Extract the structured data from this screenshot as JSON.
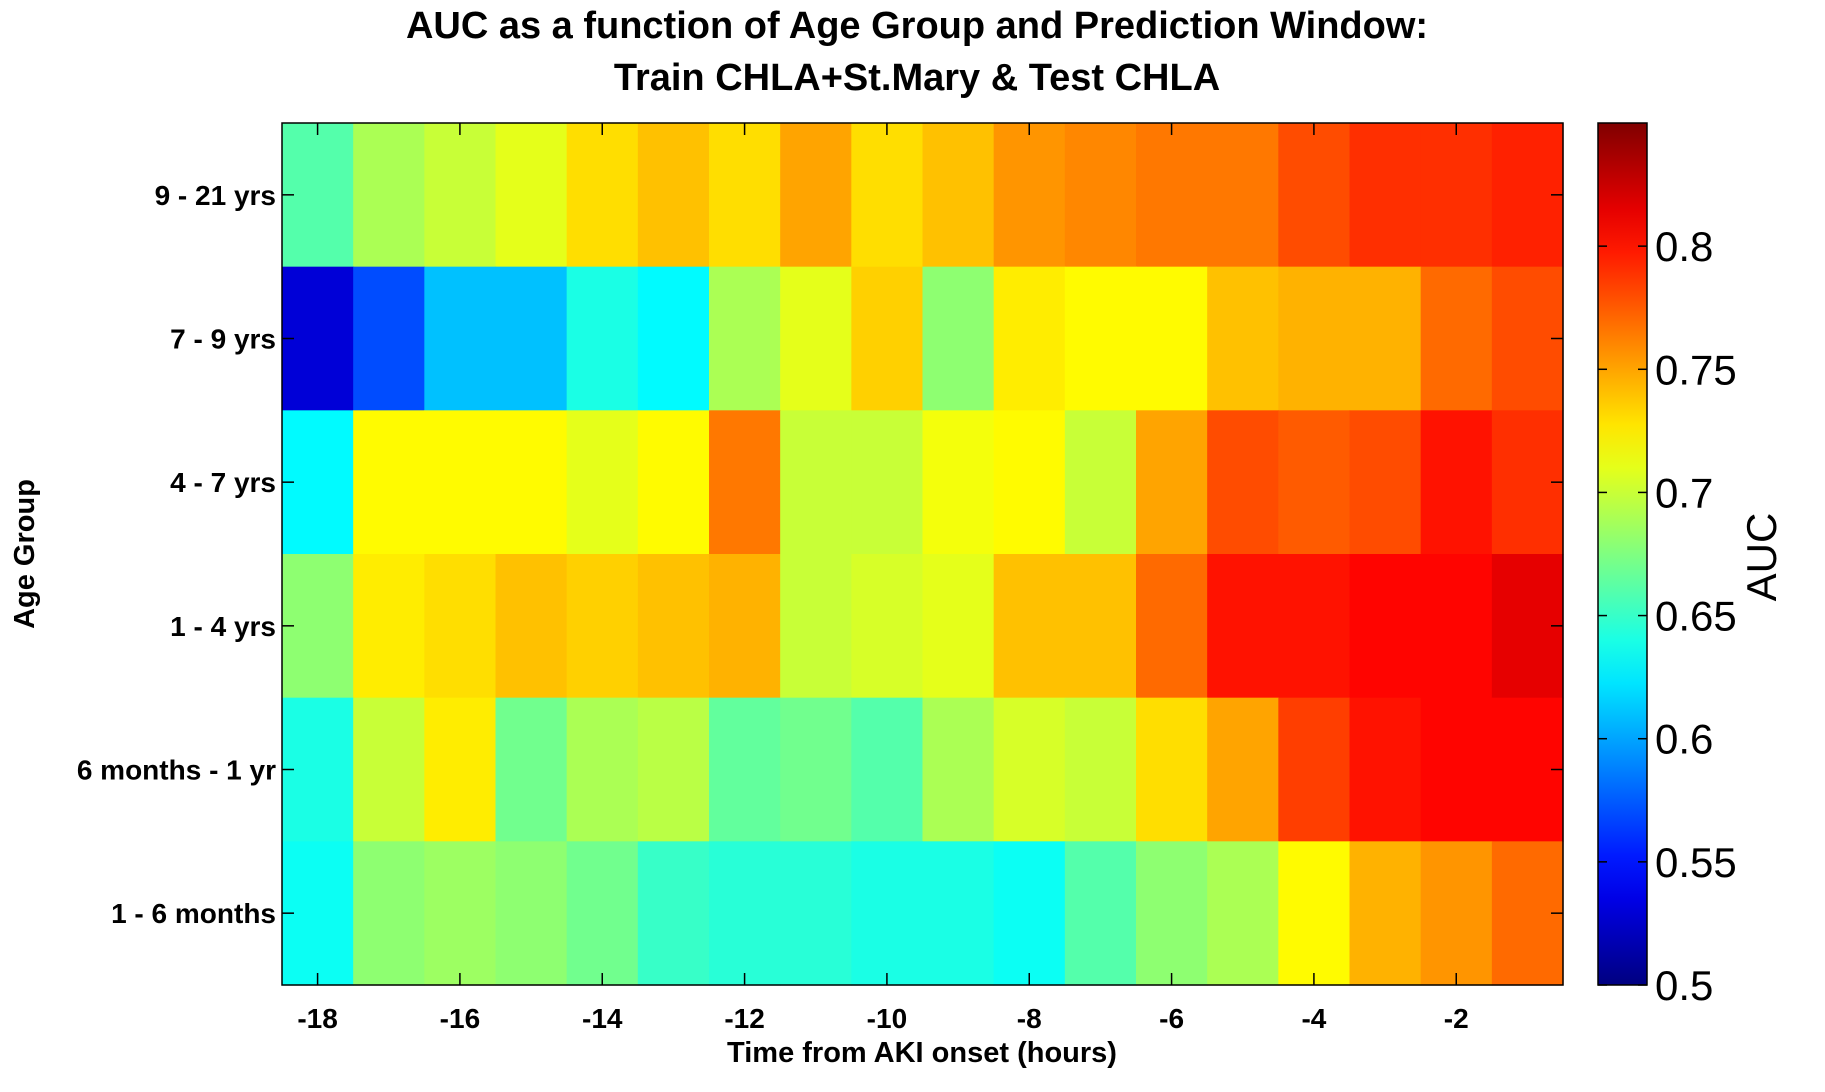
{
  "chart_data": {
    "type": "heatmap",
    "title_lines": [
      "AUC as a function of Age Group and Prediction Window:",
      "Train CHLA+St.Mary & Test CHLA"
    ],
    "xlabel": "Time from AKI onset (hours)",
    "ylabel": "Age Group",
    "colorbar_label": "AUC",
    "x": [
      -18,
      -17,
      -16,
      -15,
      -14,
      -13,
      -12,
      -11,
      -10,
      -9,
      -8,
      -7,
      -6,
      -5,
      -4,
      -3,
      -2,
      -1
    ],
    "xticks": [
      -18,
      -16,
      -14,
      -12,
      -10,
      -8,
      -6,
      -4,
      -2
    ],
    "xlim": [
      -18.5,
      -0.5
    ],
    "rows_top_to_bottom": [
      "9 - 21 yrs",
      "7 - 9 yrs",
      "4 - 7 yrs",
      "1 - 4 yrs",
      "6 months - 1 yr",
      "1 - 6 months"
    ],
    "colormap": "jet",
    "clim": [
      0.5,
      0.85
    ],
    "colorbar_ticks": [
      0.5,
      0.55,
      0.6,
      0.65,
      0.7,
      0.75,
      0.8
    ],
    "values": [
      [
        0.66,
        0.69,
        0.7,
        0.71,
        0.73,
        0.74,
        0.73,
        0.75,
        0.73,
        0.74,
        0.755,
        0.76,
        0.765,
        0.765,
        0.78,
        0.79,
        0.79,
        0.795
      ],
      [
        0.53,
        0.57,
        0.61,
        0.61,
        0.64,
        0.63,
        0.69,
        0.71,
        0.735,
        0.68,
        0.725,
        0.72,
        0.72,
        0.74,
        0.745,
        0.745,
        0.77,
        0.78
      ],
      [
        0.63,
        0.72,
        0.72,
        0.72,
        0.71,
        0.72,
        0.765,
        0.7,
        0.7,
        0.715,
        0.72,
        0.7,
        0.75,
        0.78,
        0.775,
        0.78,
        0.8,
        0.79
      ],
      [
        0.68,
        0.725,
        0.73,
        0.74,
        0.735,
        0.74,
        0.745,
        0.7,
        0.705,
        0.71,
        0.74,
        0.74,
        0.77,
        0.8,
        0.8,
        0.805,
        0.805,
        0.815
      ],
      [
        0.64,
        0.7,
        0.725,
        0.67,
        0.69,
        0.695,
        0.665,
        0.67,
        0.66,
        0.69,
        0.705,
        0.7,
        0.73,
        0.75,
        0.785,
        0.8,
        0.805,
        0.805
      ],
      [
        0.635,
        0.68,
        0.685,
        0.68,
        0.67,
        0.65,
        0.645,
        0.645,
        0.64,
        0.64,
        0.635,
        0.66,
        0.68,
        0.69,
        0.72,
        0.745,
        0.755,
        0.77
      ]
    ]
  }
}
